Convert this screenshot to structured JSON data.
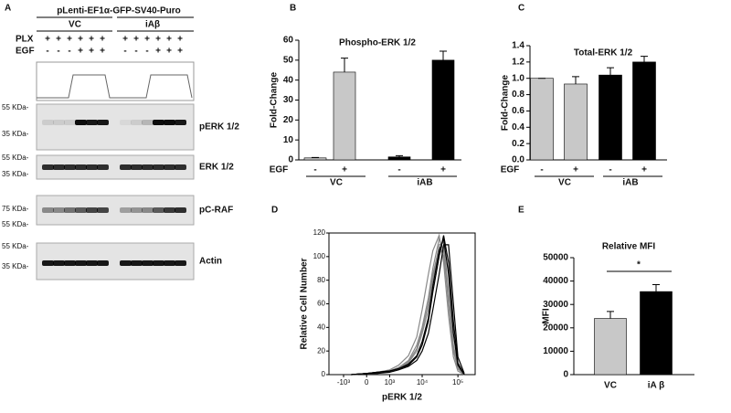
{
  "figure": {
    "panel_labels": [
      "A",
      "B",
      "C",
      "D",
      "E"
    ],
    "blot": {
      "title": "pLenti-EF1α-GFP-SV40-Puro",
      "groups": [
        "VC",
        "iAβ"
      ],
      "rows": [
        {
          "label": "PLX",
          "signs": [
            "+",
            "+",
            "+",
            "+",
            "+",
            "+",
            "+",
            "+",
            "+",
            "+",
            "+",
            "+"
          ]
        },
        {
          "label": "EGF",
          "signs": [
            "-",
            "-",
            "-",
            "+",
            "+",
            "+",
            "-",
            "-",
            "-",
            "+",
            "+",
            "+"
          ]
        }
      ],
      "strips": [
        {
          "label": "pERK 1/2",
          "markers": [
            "55 KDa-",
            "35 KDa-"
          ]
        },
        {
          "label": "ERK 1/2",
          "markers": [
            "55 KDa-",
            "35 KDa-"
          ]
        },
        {
          "label": "pC-RAF",
          "markers": [
            "75 KDa-",
            "55 KDa-"
          ]
        },
        {
          "label": "Actin",
          "markers": [
            "55 KDa-",
            "35 KDa-"
          ]
        }
      ]
    }
  },
  "chart_data": [
    {
      "type": "bar",
      "title": "Phospho-ERK 1/2",
      "ylabel": "Fold-Change",
      "row_label": "EGF",
      "categories": [
        "-",
        "+",
        "-",
        "+"
      ],
      "groups": [
        "VC",
        "iAB"
      ],
      "values": [
        1,
        44,
        1.5,
        50
      ],
      "errors": [
        0.2,
        7,
        0.6,
        4.5
      ],
      "colors": [
        "#c8c8c8",
        "#c8c8c8",
        "#000000",
        "#000000"
      ],
      "ylim": [
        0,
        60
      ],
      "yticks": [
        0,
        10,
        20,
        30,
        40,
        50,
        60
      ]
    },
    {
      "type": "bar",
      "title": "Total-ERK 1/2",
      "ylabel": "Fold-Change",
      "row_label": "EGF",
      "categories": [
        "-",
        "+",
        "-",
        "+"
      ],
      "groups": [
        "VC",
        "iAB"
      ],
      "values": [
        1.0,
        0.93,
        1.04,
        1.2
      ],
      "errors": [
        0,
        0.09,
        0.09,
        0.07
      ],
      "colors": [
        "#c8c8c8",
        "#c8c8c8",
        "#000000",
        "#000000"
      ],
      "ylim": [
        0,
        1.4
      ],
      "yticks": [
        {
          "value": 0,
          "label": "0.0"
        },
        0.2,
        0.4,
        0.6,
        0.8,
        {
          "value": 1,
          "label": "1.0"
        },
        1.2,
        1.4
      ]
    },
    {
      "type": "line",
      "xlabel": "pERK 1/2",
      "ylabel": "Relative Cell Number",
      "x": [
        -500,
        0,
        300,
        1000,
        2000,
        4000,
        7000,
        10000,
        15000,
        20000,
        30000,
        40000,
        55000,
        75000,
        100000,
        150000
      ],
      "series": [
        {
          "color": "#888888",
          "values": [
            0,
            1,
            2,
            3,
            6,
            12,
            25,
            40,
            65,
            90,
            115,
            105,
            60,
            20,
            5,
            0
          ]
        },
        {
          "color": "#888888",
          "values": [
            0,
            1,
            2,
            4,
            8,
            16,
            32,
            55,
            85,
            105,
            118,
            95,
            50,
            15,
            3,
            0
          ]
        },
        {
          "color": "#888888",
          "values": [
            0,
            1,
            1,
            3,
            5,
            10,
            20,
            35,
            55,
            80,
            110,
            112,
            70,
            25,
            6,
            0
          ]
        },
        {
          "color": "#888888",
          "values": [
            0,
            1,
            1,
            3,
            6,
            11,
            22,
            38,
            60,
            85,
            108,
            100,
            65,
            22,
            5,
            0
          ]
        },
        {
          "color": "#000000",
          "values": [
            0,
            1,
            2,
            3,
            5,
            8,
            15,
            25,
            45,
            70,
            100,
            118,
            95,
            45,
            10,
            0
          ]
        },
        {
          "color": "#000000",
          "values": [
            0,
            1,
            1,
            2,
            4,
            7,
            12,
            20,
            35,
            55,
            85,
            110,
            110,
            60,
            15,
            1
          ]
        },
        {
          "color": "#000000",
          "values": [
            0,
            1,
            2,
            3,
            5,
            9,
            16,
            28,
            48,
            75,
            105,
            115,
            85,
            35,
            8,
            0
          ]
        }
      ],
      "xlim": [
        -3000,
        300000
      ],
      "xticks": [
        {
          "value": -1000,
          "label": "-10³"
        },
        0,
        {
          "value": 1000,
          "label": "10³"
        },
        {
          "value": 10000,
          "label": "10⁴"
        },
        {
          "value": 100000,
          "label": "10⁵"
        }
      ],
      "ylim": [
        0,
        120
      ],
      "yticks": [
        0,
        20,
        40,
        60,
        80,
        100,
        120
      ]
    },
    {
      "type": "bar",
      "title": "Relative MFI",
      "ylabel": "MFI",
      "annotation": "*",
      "categories": [
        "VC",
        "iA β"
      ],
      "values": [
        24000,
        35500
      ],
      "errors": [
        3000,
        3000
      ],
      "colors": [
        "#c8c8c8",
        "#000000"
      ],
      "ylim": [
        0,
        50000
      ],
      "yticks": [
        0,
        10000,
        20000,
        30000,
        40000,
        50000
      ]
    }
  ]
}
